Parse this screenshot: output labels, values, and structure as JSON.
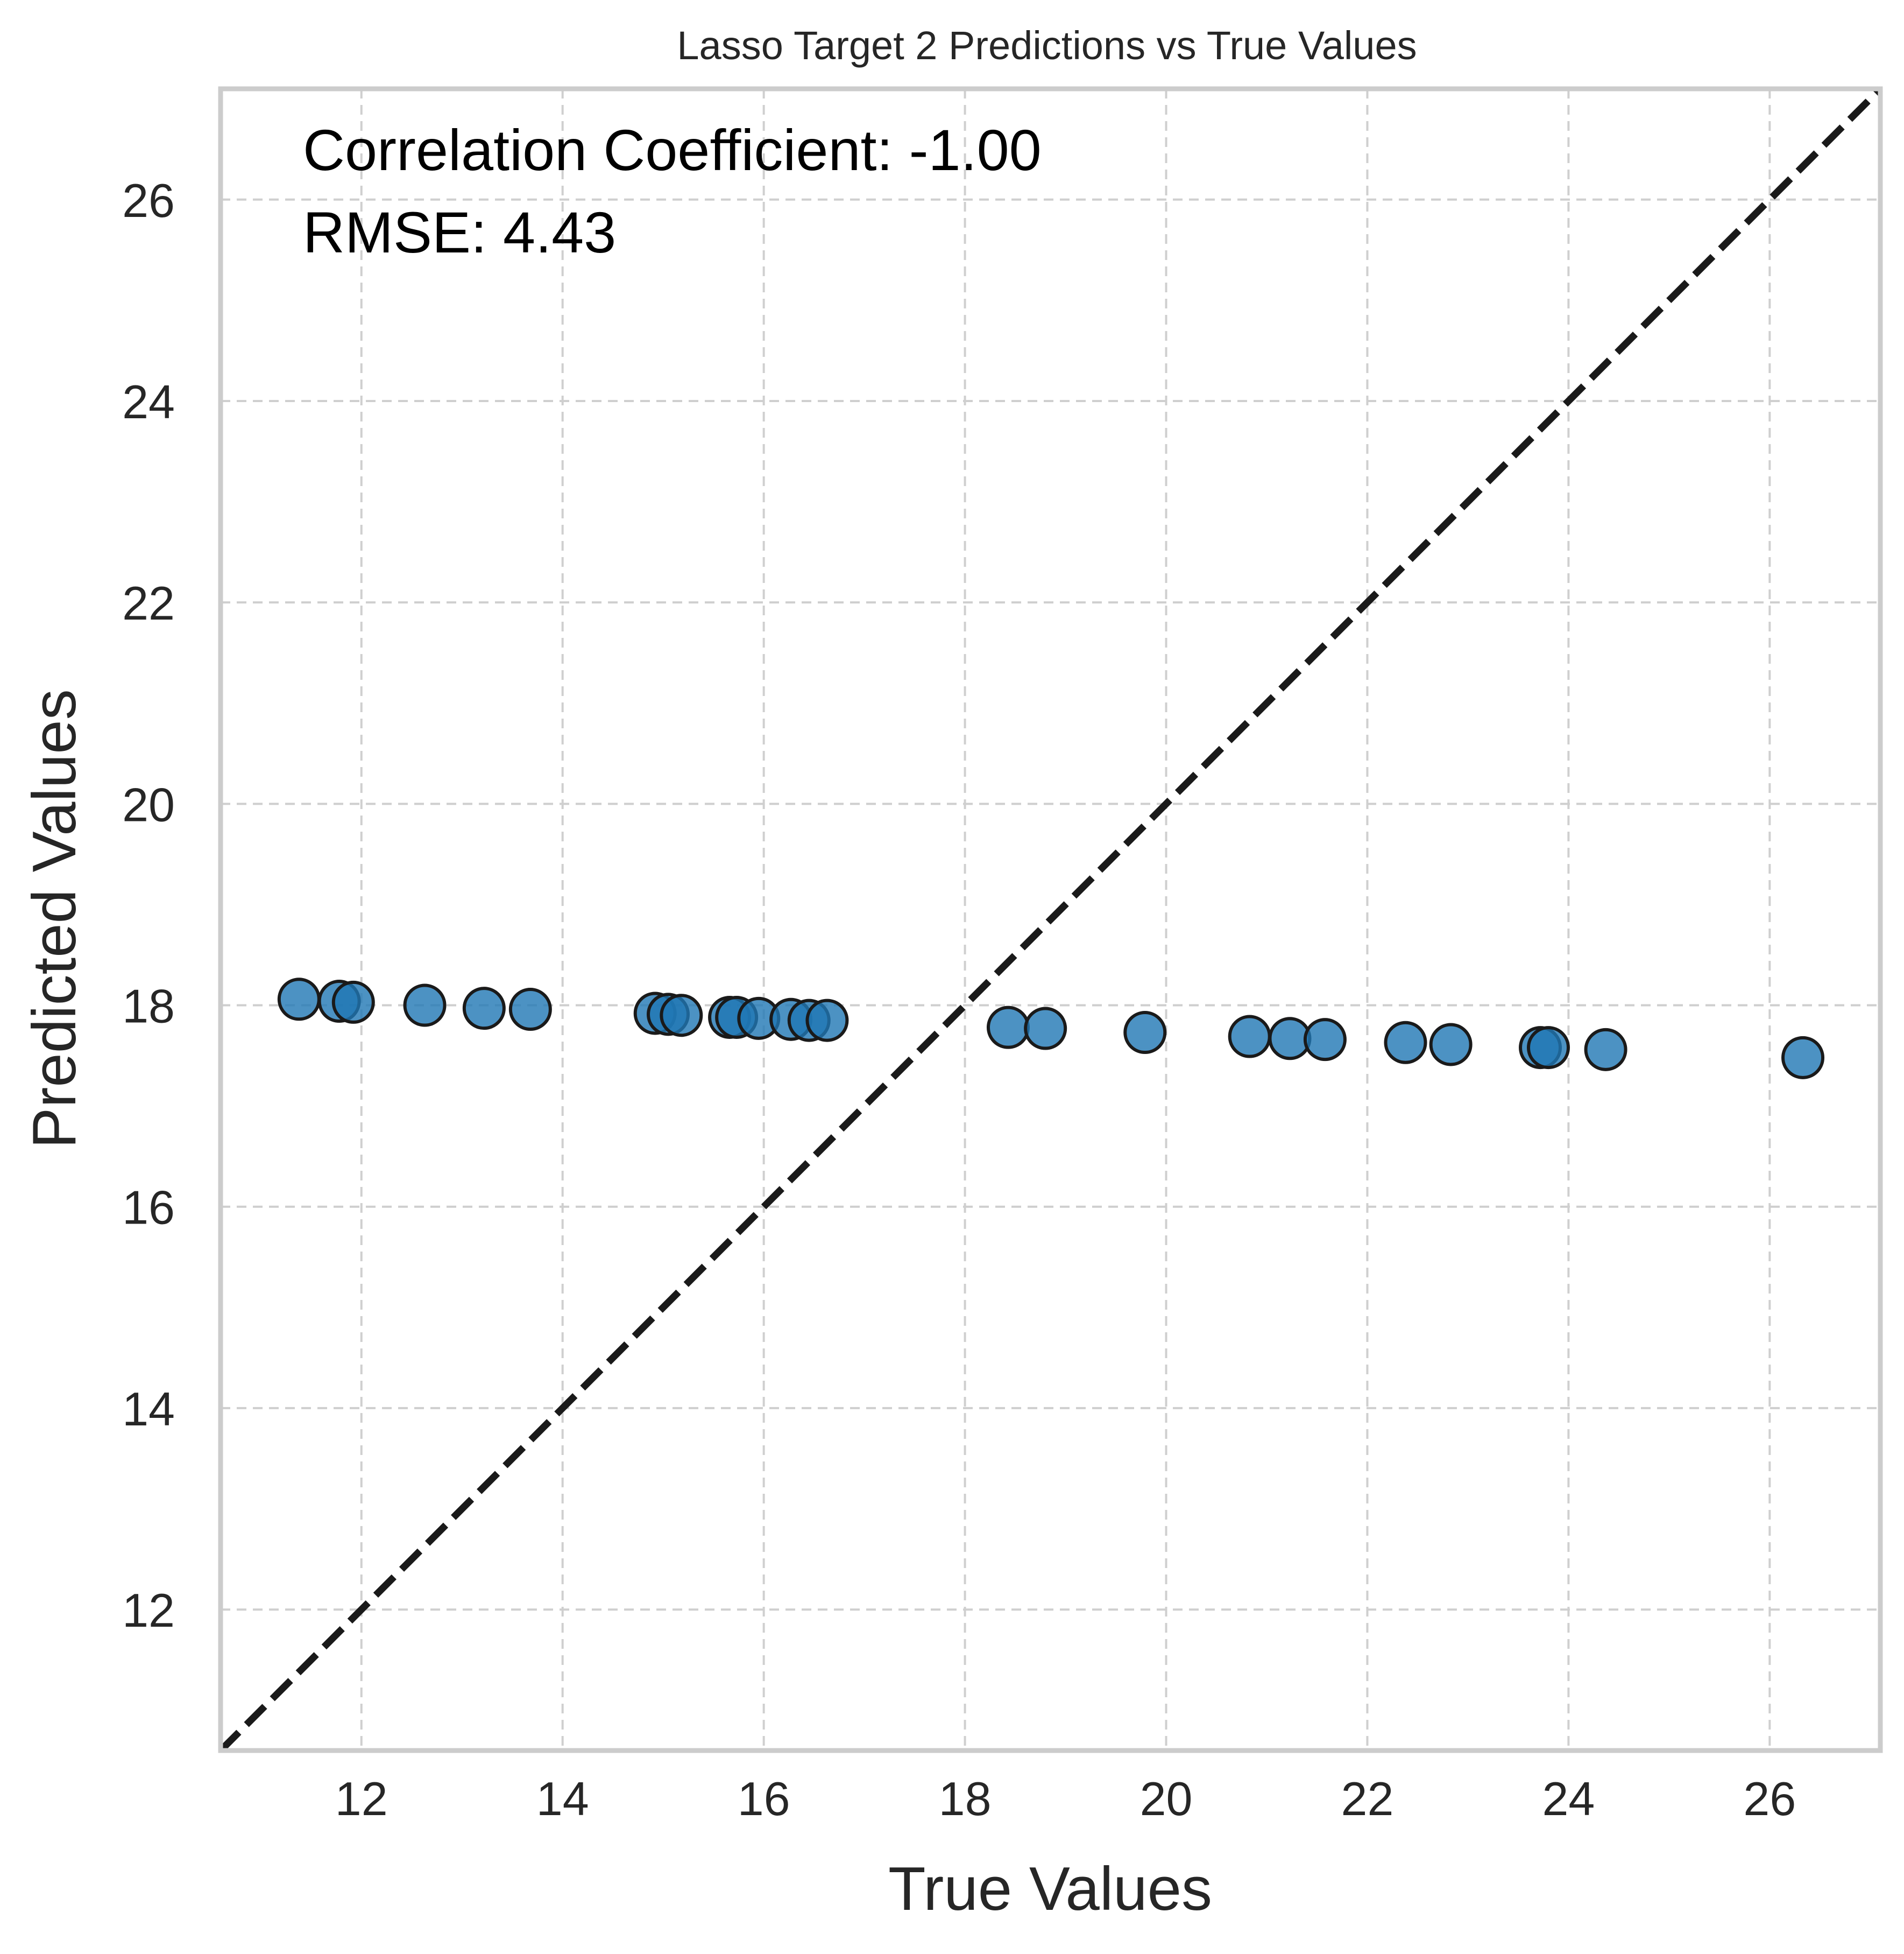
{
  "chart_data": {
    "type": "scatter",
    "title": "Lasso Target 2 Predictions vs True Values",
    "xlabel": "True Values",
    "ylabel": "Predicted Values",
    "xlim": [
      10.6,
      27.1
    ],
    "ylim": [
      10.6,
      27.1
    ],
    "xticks": [
      12,
      14,
      16,
      18,
      20,
      22,
      24,
      26
    ],
    "yticks": [
      12,
      14,
      16,
      18,
      20,
      22,
      24,
      26
    ],
    "grid": true,
    "point_color": "#1f77b4",
    "identity_line": {
      "style": "dashed",
      "color": "#1a1a1a",
      "from": [
        10.6,
        10.6
      ],
      "to": [
        27.1,
        27.1
      ]
    },
    "annotations": [
      "Correlation Coefficient: -1.00",
      "RMSE: 4.43"
    ],
    "series": [
      {
        "x": [
          11.38,
          11.78,
          11.92,
          12.63,
          13.22,
          13.68,
          14.92,
          15.05,
          15.18,
          15.66,
          15.73,
          15.95,
          16.27,
          16.45,
          16.63,
          18.43,
          18.8,
          19.79,
          20.83,
          21.23,
          21.58,
          22.38,
          22.83,
          23.72,
          23.8,
          24.37,
          26.33
        ],
        "y": [
          18.06,
          18.04,
          18.03,
          18.0,
          17.97,
          17.96,
          17.92,
          17.91,
          17.9,
          17.88,
          17.88,
          17.87,
          17.86,
          17.85,
          17.85,
          17.78,
          17.77,
          17.73,
          17.69,
          17.67,
          17.66,
          17.63,
          17.61,
          17.58,
          17.58,
          17.56,
          17.48
        ]
      }
    ]
  }
}
